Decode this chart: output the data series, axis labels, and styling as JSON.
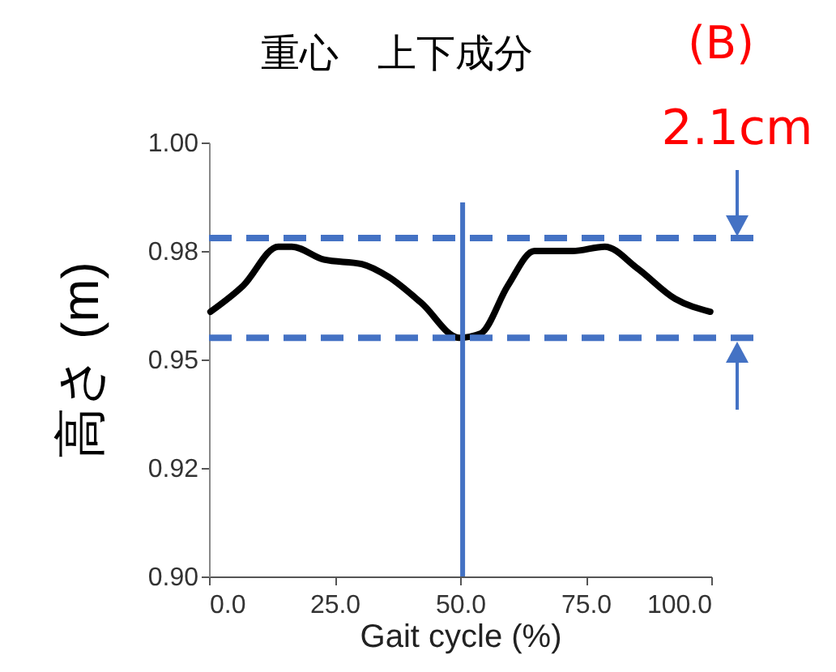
{
  "chart_data": {
    "type": "line",
    "title": "重心　上下成分",
    "xlabel": "Gait cycle (%)",
    "ylabel": "高さ (m)",
    "annotations": [
      "(B)",
      "2.1cm"
    ],
    "x": [
      0.3,
      6.8,
      13.8,
      16.5,
      22.9,
      30.4,
      35.8,
      42.3,
      49.8,
      54.1,
      59.5,
      64.8,
      72.4,
      78.8,
      85.3,
      92.8,
      99.8
    ],
    "series": [
      {
        "color": "#000000",
        "values": [
          0.961,
          0.967,
          0.976,
          0.976,
          0.973,
          0.972,
          0.969,
          0.963,
          0.955,
          0.956,
          0.967,
          0.975,
          0.975,
          0.976,
          0.971,
          0.964,
          0.961
        ]
      }
    ],
    "xlim": [
      0,
      100
    ],
    "ylim": [
      0.9,
      1.0
    ],
    "xticks": [
      {
        "value": 0,
        "label": "0.0"
      },
      {
        "value": 25,
        "label": "25.0"
      },
      {
        "value": 50,
        "label": "50.0"
      },
      {
        "value": 75,
        "label": "75.0"
      },
      {
        "value": 100,
        "label": "100.0"
      }
    ],
    "yticks": [
      {
        "value": 0.9,
        "label": "0.90"
      },
      {
        "value": 0.925,
        "label": "0.92"
      },
      {
        "value": 0.95,
        "label": "0.95"
      },
      {
        "value": 0.975,
        "label": "0.98"
      },
      {
        "value": 1.0,
        "label": "1.00"
      }
    ],
    "ref_lines": [
      {
        "axis": "y",
        "value": 0.978,
        "color": "#4472c4",
        "line_style": "dashed"
      },
      {
        "axis": "y",
        "value": 0.955,
        "color": "#4472c4",
        "line_style": "dashed"
      },
      {
        "axis": "x",
        "value": 50.5,
        "color": "#4472c4",
        "line_style": "solid"
      }
    ],
    "grid": false,
    "line_style": "solid",
    "marker": "none"
  }
}
